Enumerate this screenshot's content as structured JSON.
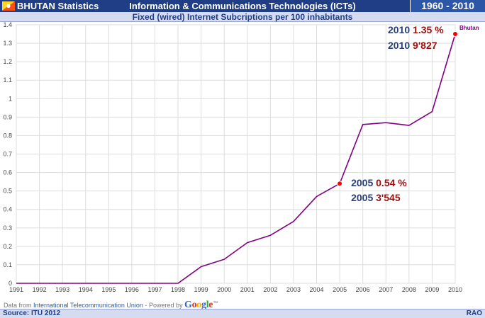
{
  "header": {
    "app_title": "BHUTAN Statistics",
    "title": "Information & Communications Technologies (ICTs)",
    "year_range": "1960 - 2010"
  },
  "subtitle": "Fixed (wired) Internet Subcriptions per 100 inhabitants",
  "colors": {
    "header_bg": "#1f3e86",
    "subheader_bg": "#d6dcf0",
    "line": "#800080",
    "marker": "#ff0000",
    "annotation_year": "#2a3e78",
    "annotation_value": "#a01010"
  },
  "chart_data": {
    "type": "line",
    "x": [
      1991,
      1992,
      1993,
      1994,
      1995,
      1996,
      1997,
      1998,
      1999,
      2000,
      2001,
      2002,
      2003,
      2004,
      2005,
      2006,
      2007,
      2008,
      2009,
      2010
    ],
    "series": [
      {
        "name": "Bhutan",
        "values": [
          0,
          0,
          0,
          0,
          0,
          0,
          0,
          0,
          0.09,
          0.13,
          0.22,
          0.26,
          0.335,
          0.47,
          0.54,
          0.86,
          0.87,
          0.855,
          0.93,
          1.35
        ]
      }
    ],
    "ylim": [
      0,
      1.4
    ],
    "y_ticks": [
      "0",
      "0.1",
      "0.2",
      "0.3",
      "0.4",
      "0.5",
      "0.6",
      "0.7",
      "0.8",
      "0.9",
      "1",
      "1.1",
      "1.2",
      "1.3",
      "1.4"
    ],
    "x_ticks": [
      "1991",
      "1992",
      "1993",
      "1994",
      "1995",
      "1996",
      "1997",
      "1998",
      "1999",
      "2000",
      "2001",
      "2002",
      "2003",
      "2004",
      "2005",
      "2006",
      "2007",
      "2008",
      "2009",
      "2010"
    ],
    "grid": true,
    "legend": "end-of-line label",
    "series_label": "Bhutan",
    "highlight_points": [
      {
        "x": 2005,
        "y": 0.54,
        "year_text": "2005",
        "value_text": "0.54 %",
        "count_text": "3'545"
      },
      {
        "x": 2010,
        "y": 1.35,
        "year_text": "2010",
        "value_text": "1.35 %",
        "count_text": "9'827"
      }
    ]
  },
  "attribution": {
    "prefix": "Data from ",
    "link": "International Telecommunication Union",
    "middle": " - Powered by ",
    "google": "Google",
    "tm": "™"
  },
  "footer": {
    "source": "Source: ITU 2012",
    "brand": "RAO"
  }
}
